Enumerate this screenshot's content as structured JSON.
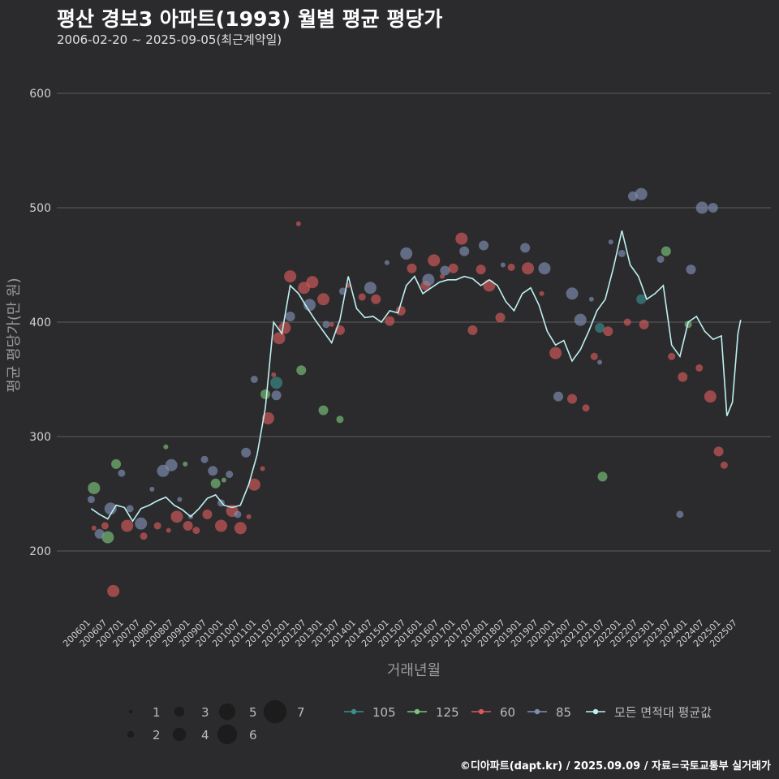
{
  "header": {
    "title": "평산 경보3 아파트(1993) 월별 평균 평당가",
    "subtitle": "2006-02-20 ~ 2025-09-05(최근계약일)"
  },
  "footer": {
    "credit": "©디아파트(dapt.kr) / 2025.09.09 / 자료=국토교통부 실거래가"
  },
  "colors": {
    "background": "#2b2b2d",
    "grid": "#5c5c5e",
    "avg_line": "#bff0f0",
    "s105": "#3a8f8d",
    "s125": "#7bc47b",
    "s60": "#d65a5a",
    "s85": "#7f8fb3"
  },
  "chart_data": {
    "type": "line",
    "xlabel": "거래년월",
    "ylabel": "평균 평당가(만 원)",
    "ylim": [
      140,
      630
    ],
    "y_ticks": [
      "200",
      "300",
      "400",
      "500",
      "600"
    ],
    "x_ticks": [
      "200601",
      "200607",
      "200701",
      "200707",
      "200801",
      "200807",
      "200901",
      "200907",
      "201001",
      "201007",
      "201101",
      "201107",
      "201201",
      "201207",
      "201301",
      "201307",
      "201401",
      "201407",
      "201501",
      "201507",
      "201601",
      "201607",
      "201701",
      "201707",
      "201801",
      "201807",
      "201901",
      "201907",
      "202001",
      "202007",
      "202101",
      "202107",
      "202201",
      "202207",
      "202301",
      "202307",
      "202401",
      "202407",
      "202501",
      "202507"
    ],
    "size_legend": [
      "1",
      "2",
      "3",
      "4",
      "5",
      "6",
      "7"
    ],
    "series": [
      {
        "name": "모든 면적대 평균값",
        "type": "line",
        "points": [
          [
            "2006-02",
            237
          ],
          [
            "2006-05",
            232
          ],
          [
            "2006-08",
            228
          ],
          [
            "2006-11",
            240
          ],
          [
            "2007-02",
            238
          ],
          [
            "2007-05",
            226
          ],
          [
            "2007-08",
            237
          ],
          [
            "2007-11",
            240
          ],
          [
            "2008-02",
            244
          ],
          [
            "2008-05",
            247
          ],
          [
            "2008-08",
            240
          ],
          [
            "2008-11",
            236
          ],
          [
            "2009-02",
            230
          ],
          [
            "2009-05",
            237
          ],
          [
            "2009-08",
            246
          ],
          [
            "2009-11",
            249
          ],
          [
            "2010-02",
            240
          ],
          [
            "2010-05",
            238
          ],
          [
            "2010-08",
            240
          ],
          [
            "2010-11",
            258
          ],
          [
            "2011-02",
            284
          ],
          [
            "2011-05",
            325
          ],
          [
            "2011-08",
            400
          ],
          [
            "2011-11",
            390
          ],
          [
            "2012-02",
            432
          ],
          [
            "2012-05",
            425
          ],
          [
            "2012-08",
            413
          ],
          [
            "2012-11",
            402
          ],
          [
            "2013-02",
            392
          ],
          [
            "2013-05",
            382
          ],
          [
            "2013-08",
            402
          ],
          [
            "2013-11",
            440
          ],
          [
            "2014-02",
            412
          ],
          [
            "2014-05",
            404
          ],
          [
            "2014-08",
            405
          ],
          [
            "2014-11",
            400
          ],
          [
            "2015-02",
            410
          ],
          [
            "2015-05",
            408
          ],
          [
            "2015-08",
            432
          ],
          [
            "2015-11",
            440
          ],
          [
            "2016-02",
            425
          ],
          [
            "2016-05",
            430
          ],
          [
            "2016-08",
            435
          ],
          [
            "2016-11",
            437
          ],
          [
            "2017-02",
            437
          ],
          [
            "2017-05",
            440
          ],
          [
            "2017-08",
            438
          ],
          [
            "2017-11",
            432
          ],
          [
            "2018-02",
            437
          ],
          [
            "2018-05",
            432
          ],
          [
            "2018-08",
            418
          ],
          [
            "2018-11",
            410
          ],
          [
            "2019-02",
            425
          ],
          [
            "2019-05",
            430
          ],
          [
            "2019-08",
            415
          ],
          [
            "2019-11",
            392
          ],
          [
            "2020-02",
            380
          ],
          [
            "2020-05",
            384
          ],
          [
            "2020-08",
            366
          ],
          [
            "2020-11",
            376
          ],
          [
            "2021-02",
            392
          ],
          [
            "2021-05",
            410
          ],
          [
            "2021-08",
            420
          ],
          [
            "2021-11",
            448
          ],
          [
            "2022-02",
            480
          ],
          [
            "2022-05",
            450
          ],
          [
            "2022-08",
            440
          ],
          [
            "2022-11",
            420
          ],
          [
            "2023-02",
            425
          ],
          [
            "2023-05",
            432
          ],
          [
            "2023-08",
            380
          ],
          [
            "2023-11",
            370
          ],
          [
            "2024-02",
            400
          ],
          [
            "2024-05",
            405
          ],
          [
            "2024-08",
            392
          ],
          [
            "2024-11",
            385
          ],
          [
            "2025-02",
            388
          ],
          [
            "2025-04",
            318
          ],
          [
            "2025-06",
            330
          ],
          [
            "2025-08",
            390
          ],
          [
            "2025-09",
            402
          ]
        ]
      },
      {
        "name": "105",
        "type": "scatter",
        "points": [
          [
            "2011-09",
            347
          ],
          [
            "2021-06",
            395
          ],
          [
            "2022-09",
            420
          ]
        ]
      },
      {
        "name": "125",
        "type": "scatter",
        "points": [
          [
            "2006-03",
            255
          ],
          [
            "2006-08",
            212
          ],
          [
            "2006-11",
            276
          ],
          [
            "2008-05",
            291
          ],
          [
            "2008-12",
            276
          ],
          [
            "2009-11",
            259
          ],
          [
            "2010-02",
            262
          ],
          [
            "2011-05",
            337
          ],
          [
            "2012-06",
            358
          ],
          [
            "2013-02",
            323
          ],
          [
            "2013-08",
            315
          ],
          [
            "2021-07",
            265
          ],
          [
            "2023-06",
            462
          ],
          [
            "2024-02",
            398
          ]
        ]
      },
      {
        "name": "60",
        "type": "scatter",
        "points": [
          [
            "2006-03",
            220
          ],
          [
            "2006-07",
            222
          ],
          [
            "2006-10",
            165
          ],
          [
            "2007-03",
            222
          ],
          [
            "2007-09",
            213
          ],
          [
            "2008-02",
            222
          ],
          [
            "2008-06",
            218
          ],
          [
            "2008-09",
            230
          ],
          [
            "2009-01",
            222
          ],
          [
            "2009-04",
            218
          ],
          [
            "2009-08",
            232
          ],
          [
            "2010-01",
            222
          ],
          [
            "2010-05",
            235
          ],
          [
            "2010-08",
            220
          ],
          [
            "2010-11",
            230
          ],
          [
            "2011-01",
            258
          ],
          [
            "2011-04",
            272
          ],
          [
            "2011-06",
            316
          ],
          [
            "2011-08",
            354
          ],
          [
            "2011-10",
            386
          ],
          [
            "2011-12",
            395
          ],
          [
            "2012-02",
            440
          ],
          [
            "2012-05",
            486
          ],
          [
            "2012-07",
            430
          ],
          [
            "2012-10",
            435
          ],
          [
            "2013-02",
            420
          ],
          [
            "2013-05",
            398
          ],
          [
            "2013-08",
            393
          ],
          [
            "2013-11",
            432
          ],
          [
            "2014-04",
            422
          ],
          [
            "2014-09",
            420
          ],
          [
            "2015-02",
            401
          ],
          [
            "2015-06",
            410
          ],
          [
            "2015-10",
            447
          ],
          [
            "2016-03",
            432
          ],
          [
            "2016-06",
            454
          ],
          [
            "2016-09",
            440
          ],
          [
            "2017-01",
            447
          ],
          [
            "2017-04",
            473
          ],
          [
            "2017-08",
            393
          ],
          [
            "2017-11",
            446
          ],
          [
            "2018-02",
            432
          ],
          [
            "2018-06",
            404
          ],
          [
            "2018-10",
            448
          ],
          [
            "2019-04",
            447
          ],
          [
            "2019-09",
            425
          ],
          [
            "2020-02",
            373
          ],
          [
            "2020-08",
            333
          ],
          [
            "2021-01",
            325
          ],
          [
            "2021-04",
            370
          ],
          [
            "2021-09",
            392
          ],
          [
            "2022-04",
            400
          ],
          [
            "2022-10",
            398
          ],
          [
            "2023-08",
            370
          ],
          [
            "2023-12",
            352
          ],
          [
            "2024-06",
            360
          ],
          [
            "2024-10",
            335
          ],
          [
            "2025-01",
            287
          ],
          [
            "2025-03",
            275
          ]
        ]
      },
      {
        "name": "85",
        "type": "scatter",
        "points": [
          [
            "2006-02",
            245
          ],
          [
            "2006-05",
            215
          ],
          [
            "2006-09",
            237
          ],
          [
            "2007-01",
            268
          ],
          [
            "2007-04",
            237
          ],
          [
            "2007-08",
            224
          ],
          [
            "2007-12",
            254
          ],
          [
            "2008-04",
            270
          ],
          [
            "2008-07",
            275
          ],
          [
            "2008-10",
            245
          ],
          [
            "2009-02",
            230
          ],
          [
            "2009-07",
            280
          ],
          [
            "2009-10",
            270
          ],
          [
            "2010-01",
            242
          ],
          [
            "2010-04",
            267
          ],
          [
            "2010-07",
            232
          ],
          [
            "2010-10",
            286
          ],
          [
            "2011-01",
            350
          ],
          [
            "2011-09",
            336
          ],
          [
            "2012-02",
            405
          ],
          [
            "2012-09",
            415
          ],
          [
            "2013-03",
            398
          ],
          [
            "2013-09",
            427
          ],
          [
            "2014-07",
            430
          ],
          [
            "2015-01",
            452
          ],
          [
            "2015-08",
            460
          ],
          [
            "2016-04",
            437
          ],
          [
            "2016-10",
            445
          ],
          [
            "2017-05",
            462
          ],
          [
            "2017-12",
            467
          ],
          [
            "2018-07",
            450
          ],
          [
            "2019-03",
            465
          ],
          [
            "2019-10",
            447
          ],
          [
            "2020-03",
            335
          ],
          [
            "2020-08",
            425
          ],
          [
            "2020-11",
            402
          ],
          [
            "2021-03",
            420
          ],
          [
            "2021-06",
            365
          ],
          [
            "2021-10",
            470
          ],
          [
            "2022-02",
            460
          ],
          [
            "2022-06",
            510
          ],
          [
            "2022-09",
            512
          ],
          [
            "2023-04",
            455
          ],
          [
            "2023-11",
            232
          ],
          [
            "2024-03",
            446
          ],
          [
            "2024-07",
            500
          ],
          [
            "2024-11",
            500
          ]
        ]
      }
    ]
  }
}
